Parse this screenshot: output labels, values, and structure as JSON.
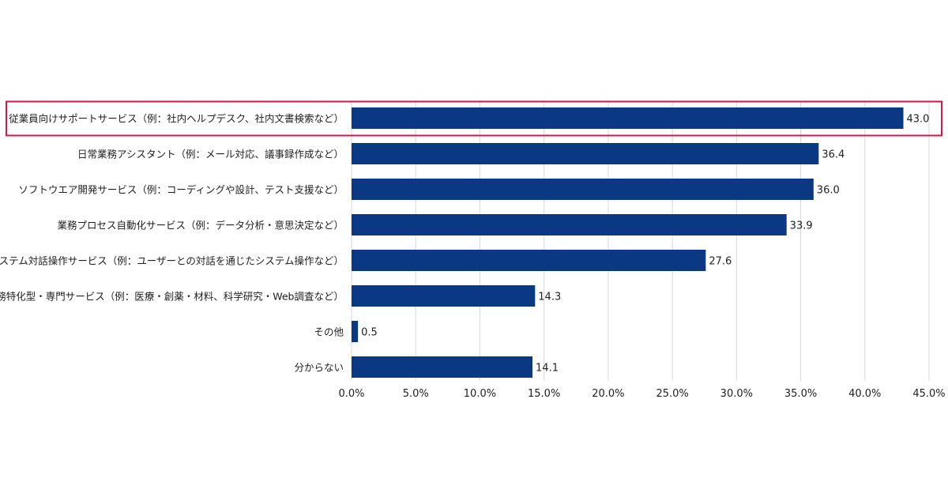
{
  "chart_data": {
    "type": "bar",
    "orientation": "horizontal",
    "title": "",
    "xlabel": "",
    "ylabel": "",
    "categories": [
      "従業員向けサポートサービス（例：社内ヘルプデスク、社内文書検索など）",
      "日常業務アシスタント（例：メール対応、議事録作成など）",
      "ソフトウエア開発サービス（例：コーディングや設計、テスト支援など）",
      "業務プロセス自動化サービス（例：データ分析・意思決定など）",
      "システム対話操作サービス（例：ユーザーとの対話を通じたシステム操作など）",
      "業務特化型・専門サービス（例：医療・創薬・材料、科学研究・Web調査など）",
      "その他",
      "分からない"
    ],
    "values": [
      43.0,
      36.4,
      36.0,
      33.9,
      27.6,
      14.3,
      0.5,
      14.1
    ],
    "value_labels": [
      "43.0",
      "36.4",
      "36.0",
      "33.9",
      "27.6",
      "14.3",
      "0.5",
      "14.1"
    ],
    "xlim": [
      0,
      45
    ],
    "x_ticks": [
      0,
      5,
      10,
      15,
      20,
      25,
      30,
      35,
      40,
      45
    ],
    "x_tick_labels": [
      "0.0%",
      "5.0%",
      "10.0%",
      "15.0%",
      "20.0%",
      "25.0%",
      "30.0%",
      "35.0%",
      "40.0%",
      "45.0%"
    ],
    "grid": "vertical",
    "highlighted_category_index": 0,
    "colors": {
      "bar": "#0a3882",
      "grid": "#d9d9d9",
      "highlight_border": "#d0184a",
      "text": "#222222"
    }
  }
}
